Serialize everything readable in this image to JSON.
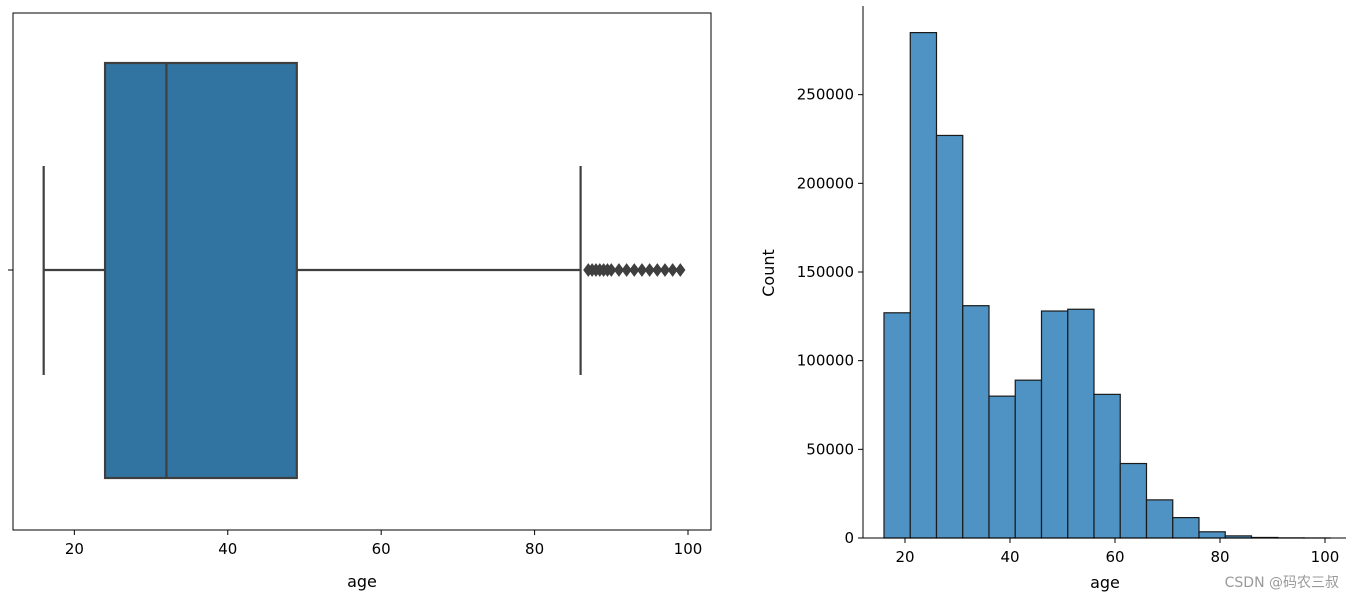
{
  "watermark": "CSDN @码农三叔",
  "chart_data": [
    {
      "type": "boxplot",
      "xlabel": "age",
      "ylabel": "",
      "xlim": [
        12,
        103
      ],
      "xticks": [
        20,
        40,
        60,
        80,
        100
      ],
      "box": {
        "whisker_low": 16,
        "q1": 24,
        "median": 32,
        "q3": 49,
        "whisker_high": 86
      },
      "outliers": [
        87,
        87.5,
        88,
        88.5,
        89,
        89.5,
        90,
        91,
        92,
        93,
        94,
        95,
        96,
        97,
        98,
        99
      ],
      "colors": {
        "box": "#3274a1",
        "lines": "#3f3f3f"
      }
    },
    {
      "type": "bar",
      "title": "",
      "xlabel": "age",
      "ylabel": "Count",
      "xlim": [
        12,
        104
      ],
      "ylim": [
        0,
        300000
      ],
      "xticks": [
        20,
        40,
        60,
        80,
        100
      ],
      "yticks": [
        0,
        50000,
        100000,
        150000,
        200000,
        250000
      ],
      "bin_edges": [
        16,
        21,
        26,
        31,
        36,
        41,
        46,
        51,
        56,
        61,
        66,
        71,
        76,
        81,
        86,
        91,
        96,
        101
      ],
      "values": [
        127000,
        285000,
        227000,
        131000,
        80000,
        89000,
        128000,
        129000,
        81000,
        42000,
        21500,
        11500,
        3500,
        1200,
        300,
        80,
        20
      ],
      "grid": false,
      "colors": {
        "bar": "#4e93c3",
        "edge": "#1a1a1a"
      }
    }
  ]
}
